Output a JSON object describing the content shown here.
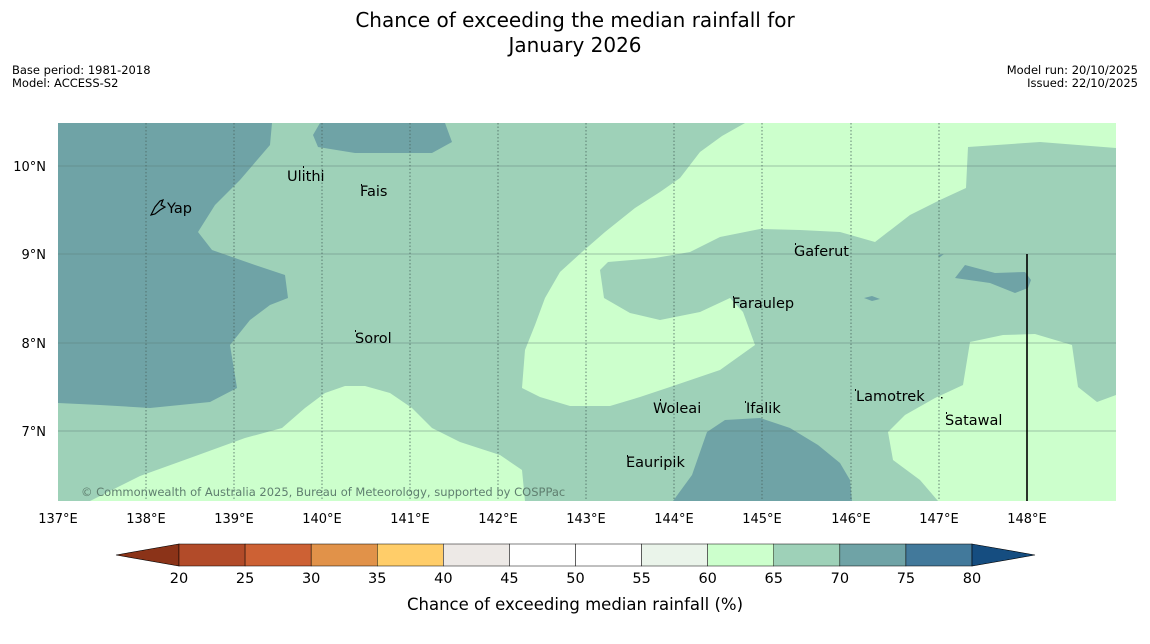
{
  "title": {
    "line1": "Chance of exceeding the median rainfall for",
    "line2": "January 2026"
  },
  "meta_left": {
    "base_period": "Base period: 1981-2018",
    "model": "Model: ACCESS-S2"
  },
  "meta_right": {
    "model_run": "Model run: 20/10/2025",
    "issued": "Issued: 22/10/2025"
  },
  "map": {
    "lat_labels": [
      "10°N",
      "9°N",
      "8°N",
      "7°N"
    ],
    "lon_labels": [
      "137°E",
      "138°E",
      "139°E",
      "140°E",
      "141°E",
      "142°E",
      "143°E",
      "144°E",
      "145°E",
      "146°E",
      "147°E",
      "148°E"
    ],
    "places": [
      "Yap",
      "Ulithi",
      "Fais",
      "Gaferut",
      "Faraulep",
      "Sorol",
      "Woleai",
      "Ifalik",
      "Lamotrek",
      "Satawal",
      "Eauripik"
    ],
    "copyright": "© Commonwealth of Australia 2025, Bureau of Meteorology, supported by COSPPac"
  },
  "colorbar": {
    "ticks": [
      "20",
      "25",
      "30",
      "35",
      "40",
      "45",
      "50",
      "55",
      "60",
      "65",
      "70",
      "75",
      "80"
    ],
    "colors": [
      "#8b3318",
      "#b24b29",
      "#cd6134",
      "#e19249",
      "#ffcd69",
      "#ede9e6",
      "#ffffff",
      "#ffffff",
      "#eaf4ea",
      "#ccffcc",
      "#9ed1b8",
      "#6fa3a6",
      "#42799b",
      "#154d80"
    ],
    "label": "Chance of exceeding median rainfall (%)"
  },
  "palette": {
    "p60_65": "#ccffcc",
    "p65_70": "#9ed1b8",
    "p70_75": "#6fa3a6",
    "p75_80": "#42799b"
  }
}
